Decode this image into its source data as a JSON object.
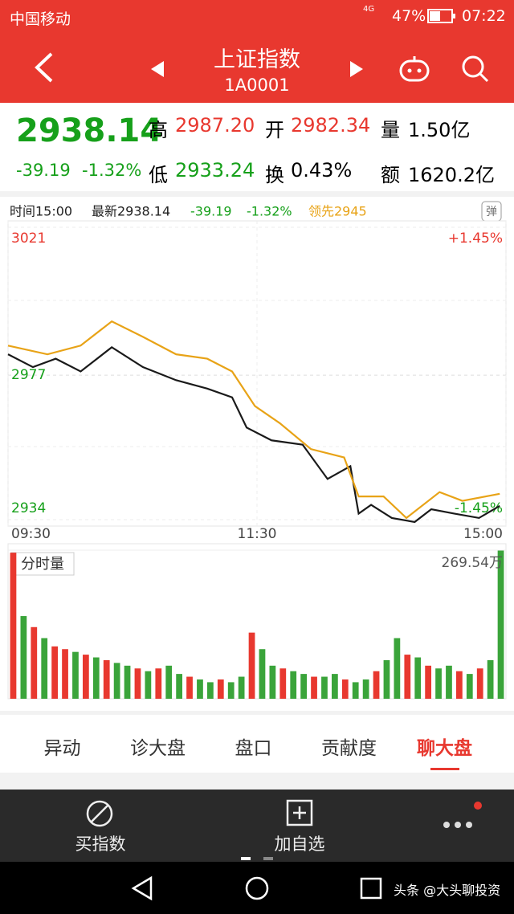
{
  "status_bar": {
    "carrier": "中国移动",
    "network": "4G",
    "battery": "47%",
    "time": "07:22"
  },
  "header": {
    "title": "上证指数",
    "code": "1A0001"
  },
  "quote": {
    "price": "2938.14",
    "change": "-39.19",
    "change_pct": "-1.32%",
    "high_label": "高",
    "high": "2987.20",
    "open_label": "开",
    "open": "2982.34",
    "volume_label": "量",
    "volume": "1.50亿",
    "low_label": "低",
    "low": "2933.24",
    "turnover_label": "换",
    "turnover": "0.43%",
    "amount_label": "额",
    "amount": "1620.2亿"
  },
  "chart_info": {
    "time": "时间15:00",
    "latest": "最新2938.14",
    "change": "-39.19",
    "change_pct": "-1.32%",
    "lead": "领先2945",
    "badge": "弹"
  },
  "chart_data": {
    "type": "line",
    "xlim": [
      0,
      240
    ],
    "xticks": [
      {
        "value": 0,
        "label": "09:30"
      },
      {
        "value": 120,
        "label": "11:30"
      },
      {
        "value": 240,
        "label": "15:00"
      }
    ],
    "ylim": [
      2934,
      3021
    ],
    "yticks": [
      2934,
      2977,
      3021
    ],
    "pct_labels": [
      "+1.45%",
      "-1.45%"
    ],
    "series": [
      {
        "name": "最新",
        "color": "#1a1a1a",
        "x": [
          0,
          12,
          23,
          35,
          50,
          65,
          81,
          96,
          108,
          115,
          127,
          142,
          154,
          165,
          169,
          175,
          185,
          196,
          204,
          215,
          227,
          237
        ],
        "values": [
          2983.2,
          2979.4,
          2981.9,
          2978.1,
          2985.3,
          2979.4,
          2975.5,
          2973.0,
          2970.4,
          2961.4,
          2957.6,
          2956.3,
          2946.1,
          2949.9,
          2935.8,
          2938.4,
          2934.5,
          2933.3,
          2937.1,
          2935.8,
          2934.5,
          2938.1
        ]
      },
      {
        "name": "领先",
        "color": "#e8a317",
        "x": [
          0,
          19,
          35,
          50,
          65,
          81,
          96,
          108,
          119,
          131,
          146,
          162,
          169,
          181,
          192,
          208,
          219,
          237
        ],
        "values": [
          2985.8,
          2983.2,
          2985.8,
          2993.0,
          2988.4,
          2983.2,
          2981.9,
          2978.1,
          2967.8,
          2962.7,
          2955.0,
          2952.5,
          2940.9,
          2940.9,
          2934.5,
          2942.2,
          2939.6,
          2941.7
        ]
      }
    ],
    "volume": {
      "label": "分时量",
      "ylim": [
        0,
        269.54
      ],
      "yticks": [
        {
          "value": 269.54,
          "label": "269.54万"
        }
      ],
      "values": [
        265,
        150,
        130,
        110,
        95,
        90,
        85,
        80,
        75,
        70,
        65,
        60,
        55,
        50,
        55,
        60,
        45,
        40,
        35,
        30,
        35,
        30,
        40,
        120,
        90,
        60,
        55,
        50,
        45,
        40,
        40,
        45,
        35,
        30,
        35,
        50,
        70,
        110,
        80,
        75,
        60,
        55,
        60,
        50,
        45,
        55,
        70,
        269
      ],
      "colors": [
        "#e8382f",
        "#3aa43a",
        "#e8382f",
        "#3aa43a",
        "#e8382f",
        "#e8382f",
        "#3aa43a",
        "#e8382f",
        "#3aa43a",
        "#e8382f",
        "#3aa43a",
        "#3aa43a",
        "#e8382f",
        "#3aa43a",
        "#e8382f",
        "#3aa43a",
        "#3aa43a",
        "#e8382f",
        "#3aa43a",
        "#3aa43a",
        "#e8382f",
        "#3aa43a",
        "#3aa43a",
        "#e8382f",
        "#3aa43a",
        "#3aa43a",
        "#e8382f",
        "#3aa43a",
        "#3aa43a",
        "#e8382f",
        "#3aa43a",
        "#3aa43a",
        "#e8382f",
        "#3aa43a",
        "#3aa43a",
        "#e8382f",
        "#3aa43a",
        "#3aa43a",
        "#e8382f",
        "#3aa43a",
        "#e8382f",
        "#3aa43a",
        "#3aa43a",
        "#e8382f",
        "#3aa43a",
        "#e8382f",
        "#3aa43a",
        "#3aa43a"
      ]
    }
  },
  "tabs": [
    "异动",
    "诊大盘",
    "盘口",
    "贡献度",
    "聊大盘"
  ],
  "bottom_bar": [
    "买指数",
    "加自选"
  ],
  "watermark": "头条 @大头聊投资"
}
